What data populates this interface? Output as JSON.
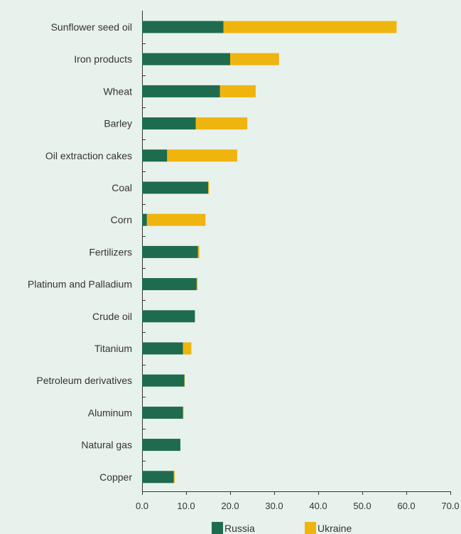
{
  "chart_data": {
    "type": "bar",
    "orientation": "horizontal",
    "stacked": true,
    "categories": [
      "Sunflower seed oil",
      "Iron products",
      "Wheat",
      "Barley",
      "Oil extraction cakes",
      "Coal",
      "Corn",
      "Fertilizers",
      "Platinum and Palladium",
      "Crude oil",
      "Titanium",
      "Petroleum derivatives",
      "Aluminum",
      "Natural gas",
      "Copper"
    ],
    "series": [
      {
        "name": "Russia",
        "color": "#1f6b4e",
        "values": [
          18.5,
          20.0,
          17.7,
          12.2,
          5.7,
          15.0,
          1.1,
          12.7,
          12.4,
          12.0,
          9.3,
          9.6,
          9.3,
          8.7,
          7.2
        ]
      },
      {
        "name": "Ukraine",
        "color": "#f0b40f",
        "values": [
          39.3,
          11.1,
          8.1,
          11.7,
          15.9,
          0.2,
          13.3,
          0.3,
          0.2,
          0.0,
          1.9,
          0.1,
          0.1,
          0.0,
          0.2
        ]
      }
    ],
    "xlim": [
      0,
      70
    ],
    "xticks": [
      "0.0",
      "10.0",
      "20.0",
      "30.0",
      "40.0",
      "50.0",
      "60.0",
      "70.0"
    ],
    "title": "",
    "xlabel": "",
    "ylabel": "",
    "grid": false,
    "legend_position": "bottom"
  }
}
